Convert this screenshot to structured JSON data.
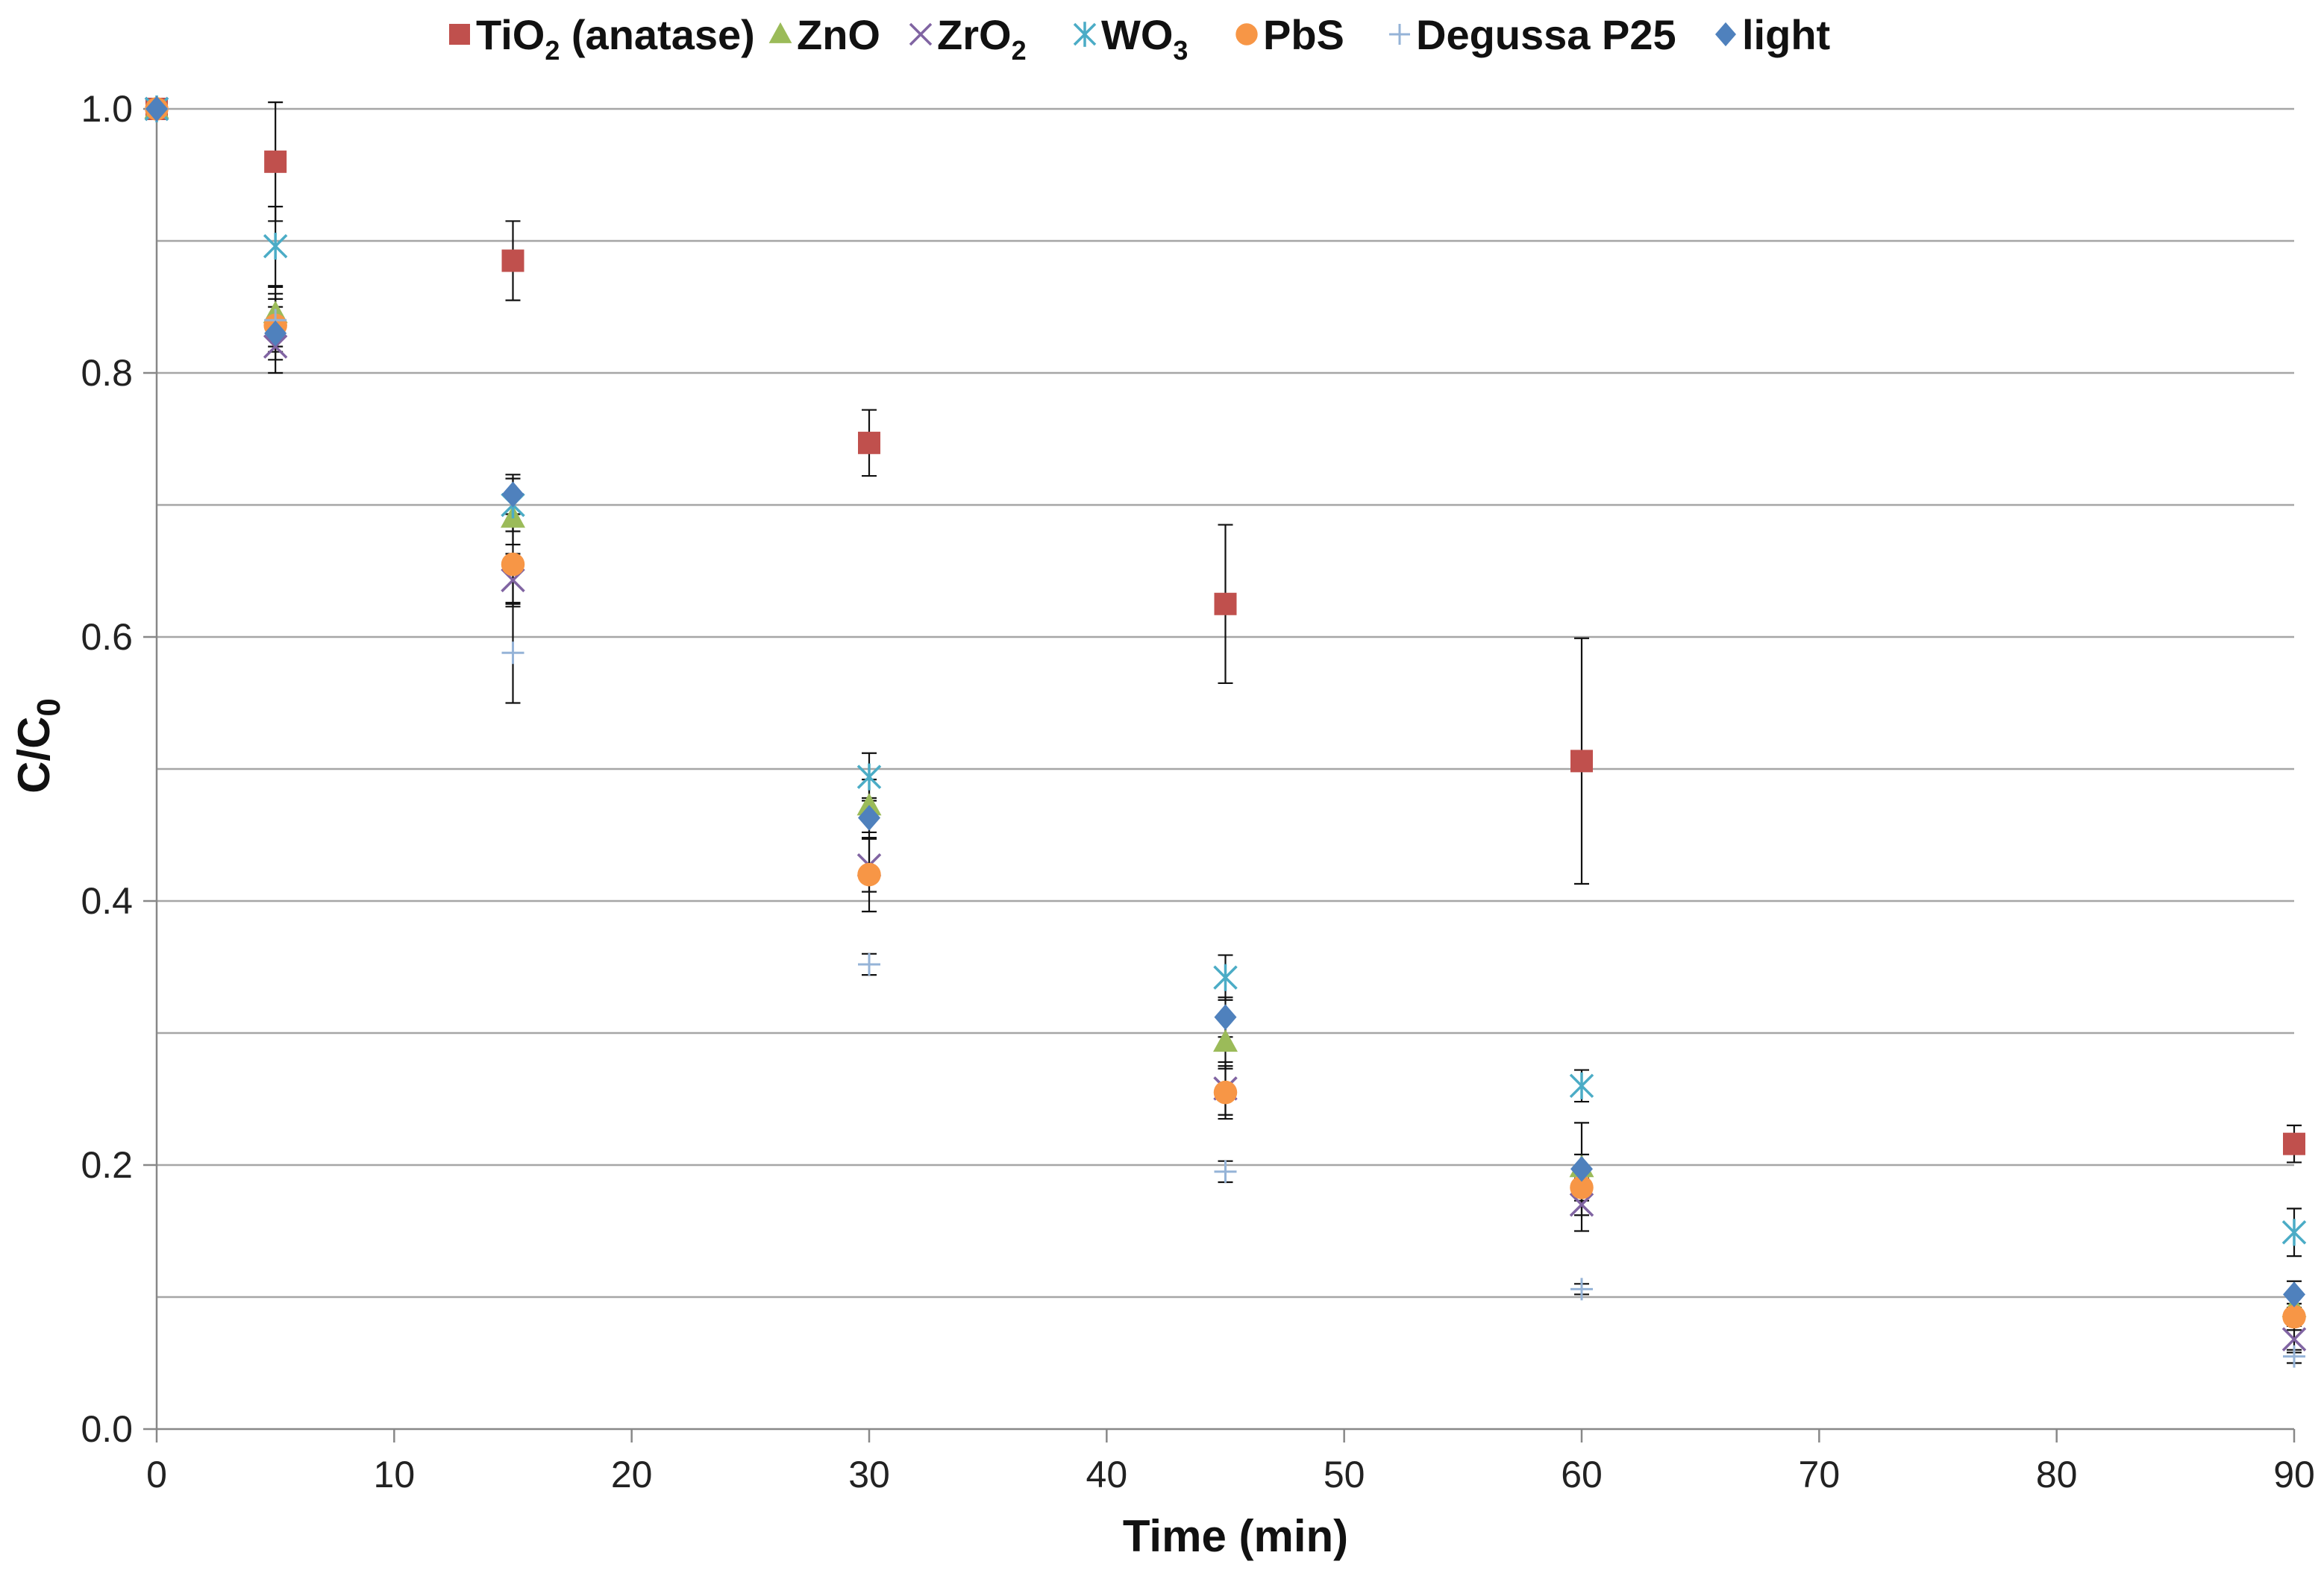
{
  "chart_data": {
    "type": "scatter",
    "title": "",
    "xlabel": "Time (min)",
    "ylabel_main": "C/C",
    "ylabel_sub": "0",
    "xlim": [
      0,
      90
    ],
    "ylim": [
      0,
      1.0
    ],
    "x_ticks": [
      0,
      10,
      20,
      30,
      40,
      50,
      60,
      70,
      80,
      90
    ],
    "x_tick_labels": [
      "0",
      "10",
      "20",
      "30",
      "40",
      "50",
      "60",
      "70",
      "80",
      "90"
    ],
    "y_ticks": [
      0.0,
      0.2,
      0.4,
      0.6,
      0.8,
      1.0
    ],
    "y_tick_labels": [
      "0.0",
      "0.2",
      "0.4",
      "0.6",
      "0.8",
      "1.0"
    ],
    "y_gridlines": [
      0.1,
      0.2,
      0.3,
      0.4,
      0.5,
      0.6,
      0.7,
      0.8,
      0.9,
      1.0
    ],
    "grid": true,
    "legend_position": "top",
    "series": [
      {
        "name": "TiO2 (anatase)",
        "label_parts": [
          "TiO",
          "2",
          " (anatase)"
        ],
        "marker": "square",
        "color": "#C0504D",
        "x": [
          0,
          5,
          15,
          30,
          45,
          60,
          90
        ],
        "y": [
          1.0,
          0.96,
          0.885,
          0.747,
          0.625,
          0.506,
          0.216
        ],
        "err": [
          0,
          0.045,
          0.03,
          0.025,
          0.06,
          0.093,
          0.014
        ]
      },
      {
        "name": "ZnO",
        "label_parts": [
          "ZnO"
        ],
        "marker": "triangle",
        "color": "#9BBB59",
        "x": [
          0,
          5,
          15,
          30,
          45,
          60,
          90
        ],
        "y": [
          1.0,
          0.845,
          0.69,
          0.472,
          0.293,
          0.198,
          0.092
        ],
        "err": [
          0,
          0.02,
          0.02,
          0.02,
          0.02,
          0.01,
          0.01
        ]
      },
      {
        "name": "ZrO2",
        "label_parts": [
          "ZrO",
          "2"
        ],
        "marker": "x",
        "color": "#8064A2",
        "x": [
          0,
          5,
          15,
          30,
          45,
          60,
          90
        ],
        "y": [
          1.0,
          0.82,
          0.643,
          0.427,
          0.258,
          0.17,
          0.068
        ],
        "err": [
          0,
          0.02,
          0.02,
          0.02,
          0.02,
          0.02,
          0.01
        ]
      },
      {
        "name": "WO3",
        "label_parts": [
          "WO",
          "3"
        ],
        "marker": "star",
        "color": "#4BACC6",
        "x": [
          0,
          5,
          15,
          30,
          45,
          60,
          90
        ],
        "y": [
          1.0,
          0.896,
          0.7,
          0.494,
          0.342,
          0.26,
          0.149
        ],
        "err": [
          0,
          0.03,
          0.02,
          0.018,
          0.017,
          0.012,
          0.018
        ]
      },
      {
        "name": "PbS",
        "label_parts": [
          "PbS"
        ],
        "marker": "circle",
        "color": "#F79646",
        "x": [
          0,
          5,
          15,
          30,
          45,
          60,
          90
        ],
        "y": [
          1.0,
          0.836,
          0.655,
          0.42,
          0.255,
          0.183,
          0.085
        ],
        "err": [
          0,
          0.02,
          0.03,
          0.028,
          0.02,
          0.01,
          0.01
        ]
      },
      {
        "name": "Degussa P25",
        "label_parts": [
          "Degussa P25"
        ],
        "marker": "plus",
        "color": "#95B3D7",
        "x": [
          0,
          5,
          15,
          30,
          45,
          60,
          90
        ],
        "y": [
          1.0,
          0.84,
          0.588,
          0.352,
          0.195,
          0.106,
          0.055
        ],
        "err": [
          0,
          0.02,
          0.038,
          0.008,
          0.008,
          0.004,
          0.005
        ]
      },
      {
        "name": "light",
        "label_parts": [
          "light"
        ],
        "marker": "diamond",
        "color": "#4F81BD",
        "x": [
          0,
          5,
          15,
          30,
          45,
          60,
          90
        ],
        "y": [
          1.0,
          0.83,
          0.708,
          0.463,
          0.312,
          0.197,
          0.102
        ],
        "err": [
          0,
          0.02,
          0.015,
          0.015,
          0.015,
          0.035,
          0.01
        ]
      }
    ]
  }
}
